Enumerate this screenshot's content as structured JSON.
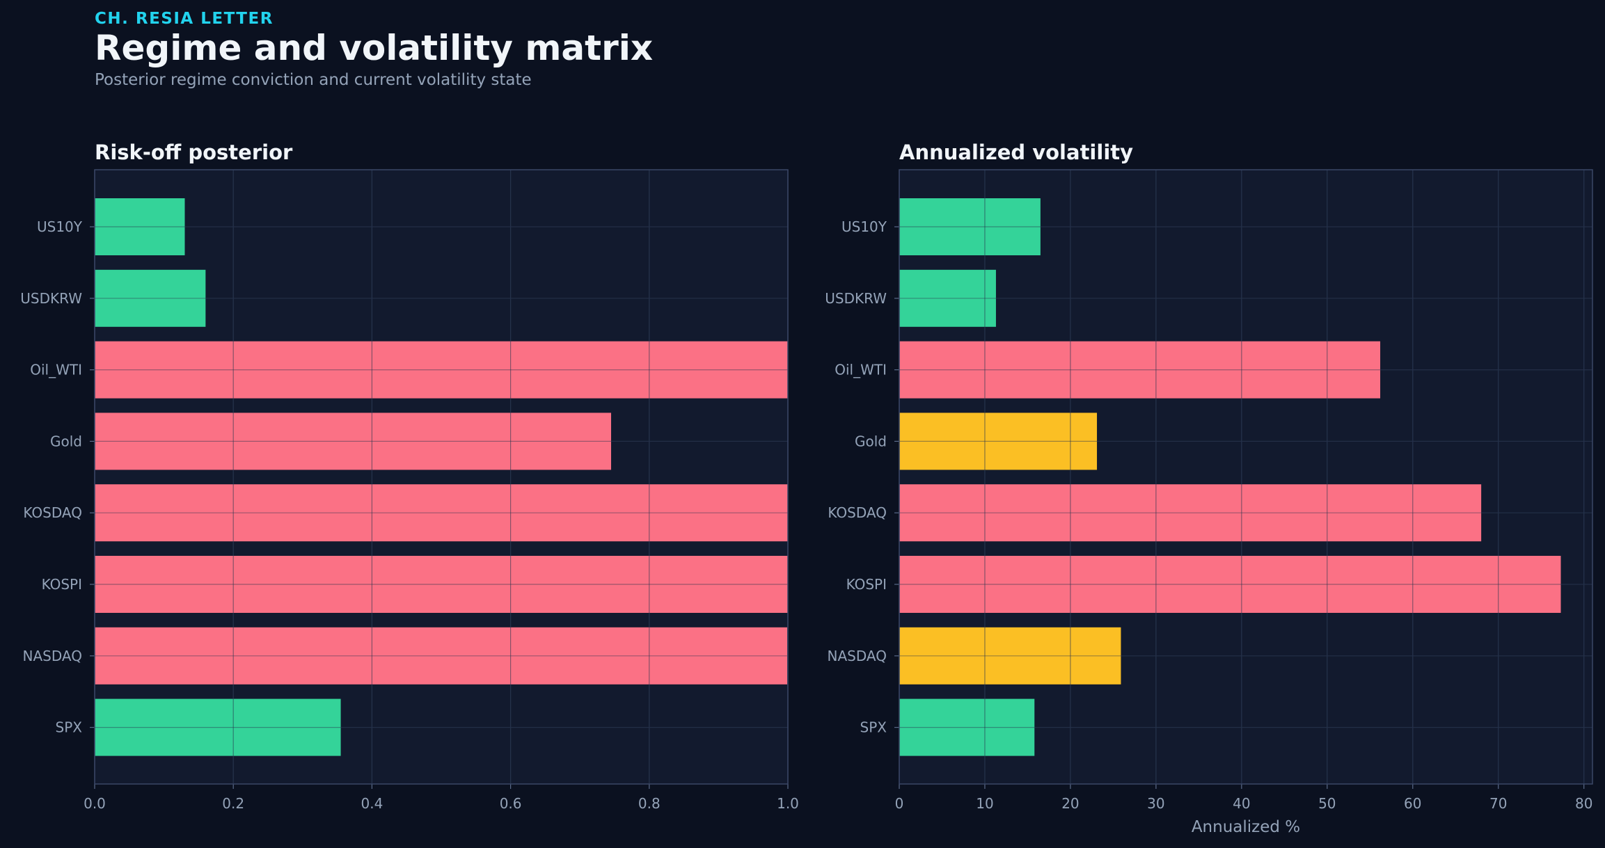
{
  "header": {
    "kicker": "CH. RESIA LETTER",
    "title": "Regime and volatility matrix",
    "subtitle": "Posterior regime conviction and current volatility state"
  },
  "colors": {
    "background": "#0b1120",
    "panel": "#121a2e",
    "green": "#34d399",
    "red": "#fb7185",
    "amber": "#fbbf24",
    "kicker": "#22d3ee"
  },
  "chart_data": [
    {
      "type": "bar",
      "orientation": "horizontal",
      "title": "Risk-off posterior",
      "xlabel": "",
      "categories": [
        "US10Y",
        "USDKRW",
        "Oil_WTI",
        "Gold",
        "KOSDAQ",
        "KOSPI",
        "NASDAQ",
        "SPX"
      ],
      "values": [
        0.13,
        0.16,
        1.0,
        0.745,
        1.0,
        1.0,
        0.999,
        0.355
      ],
      "colors": [
        "green",
        "green",
        "red",
        "red",
        "red",
        "red",
        "red",
        "green"
      ],
      "xlim": [
        0,
        1.0
      ],
      "xticks": [
        "0.0",
        "0.2",
        "0.4",
        "0.6",
        "0.8",
        "1.0"
      ],
      "grid": true
    },
    {
      "type": "bar",
      "orientation": "horizontal",
      "title": "Annualized volatility",
      "xlabel": "Annualized %",
      "categories": [
        "US10Y",
        "USDKRW",
        "Oil_WTI",
        "Gold",
        "KOSDAQ",
        "KOSPI",
        "NASDAQ",
        "SPX"
      ],
      "values": [
        16.5,
        11.3,
        56.2,
        23.1,
        68.0,
        77.3,
        25.9,
        15.8
      ],
      "colors": [
        "green",
        "green",
        "red",
        "amber",
        "red",
        "red",
        "amber",
        "green"
      ],
      "xlim": [
        0,
        81
      ],
      "xticks": [
        "0",
        "10",
        "20",
        "30",
        "40",
        "50",
        "60",
        "70",
        "80"
      ],
      "grid": true
    }
  ]
}
